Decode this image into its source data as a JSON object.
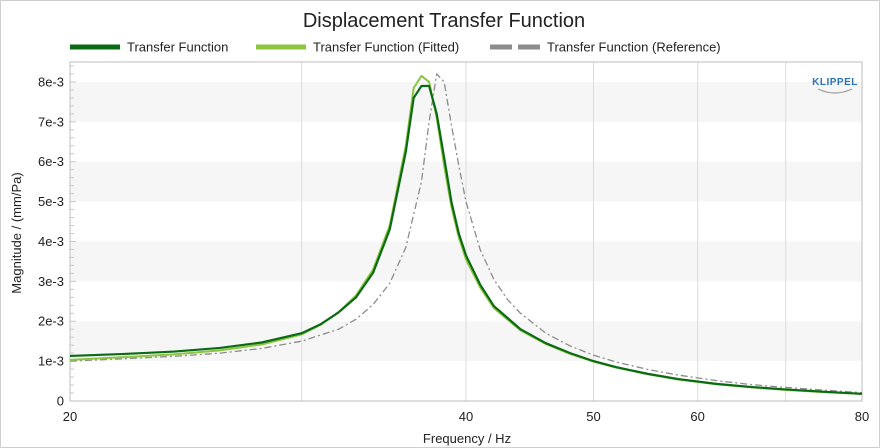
{
  "logo": {
    "text": "KLIPPEL"
  },
  "chart_data": {
    "type": "line",
    "title": "Displacement Transfer Function",
    "xlabel": "Frequency / Hz",
    "ylabel": "Magnitude / (mm/Pa)",
    "xscale": "log",
    "xlim": [
      20,
      80
    ],
    "ylim": [
      0,
      0.0085
    ],
    "x_ticks": [
      20,
      40,
      50,
      60,
      80
    ],
    "x_tick_labels": [
      "20",
      "40",
      "50",
      "60",
      "80"
    ],
    "y_ticks": [
      0,
      0.001,
      0.002,
      0.003,
      0.004,
      0.005,
      0.006,
      0.007,
      0.008
    ],
    "y_tick_labels": [
      "0",
      "1e-3",
      "2e-3",
      "3e-3",
      "4e-3",
      "5e-3",
      "6e-3",
      "7e-3",
      "8e-3"
    ],
    "grid": true,
    "legend_position": "top",
    "series": [
      {
        "name": "Transfer Function",
        "color": "#0a6b14",
        "style": "solid",
        "x": [
          20,
          22,
          24,
          26,
          28,
          30,
          31,
          32,
          33,
          34,
          35,
          36,
          36.5,
          37,
          37.5,
          38,
          38.5,
          39,
          39.5,
          40,
          41,
          42,
          44,
          46,
          48,
          50,
          52,
          55,
          58,
          62,
          66,
          70,
          75,
          80
        ],
        "y": [
          0.00113,
          0.00118,
          0.00124,
          0.00133,
          0.00147,
          0.0017,
          0.00192,
          0.00222,
          0.0026,
          0.00322,
          0.0043,
          0.00625,
          0.0076,
          0.0079,
          0.0079,
          0.0072,
          0.0061,
          0.00498,
          0.0042,
          0.00365,
          0.00292,
          0.00238,
          0.0018,
          0.00145,
          0.0012,
          0.001,
          0.00085,
          0.00068,
          0.00055,
          0.00043,
          0.00035,
          0.00029,
          0.00023,
          0.00018
        ]
      },
      {
        "name": "Transfer Function (Fitted)",
        "color": "#8cc63f",
        "style": "solid",
        "x": [
          20,
          22,
          24,
          26,
          28,
          30,
          31,
          32,
          33,
          34,
          35,
          36,
          36.5,
          37,
          37.5,
          38,
          38.5,
          39,
          39.5,
          40,
          41,
          42,
          44,
          46,
          48,
          50,
          52,
          55,
          58,
          62,
          66,
          70,
          75,
          80
        ],
        "y": [
          0.00103,
          0.0011,
          0.00117,
          0.00127,
          0.00142,
          0.00167,
          0.00191,
          0.00223,
          0.00265,
          0.0033,
          0.0044,
          0.0064,
          0.00785,
          0.00815,
          0.008,
          0.0071,
          0.0059,
          0.00485,
          0.0041,
          0.00355,
          0.00285,
          0.00233,
          0.00177,
          0.00143,
          0.00118,
          0.00099,
          0.00084,
          0.00067,
          0.00054,
          0.00042,
          0.00034,
          0.00028,
          0.00022,
          0.00018
        ]
      },
      {
        "name": "Transfer Function (Reference)",
        "color": "#8c8c8c",
        "style": "dashed",
        "x": [
          20,
          22,
          24,
          26,
          28,
          30,
          32,
          33,
          34,
          35,
          36,
          37,
          37.5,
          38,
          38.5,
          39,
          39.5,
          40,
          41,
          42,
          43,
          44,
          46,
          48,
          50,
          52,
          55,
          58,
          62,
          66,
          70,
          75,
          80
        ],
        "y": [
          0.001,
          0.00106,
          0.00112,
          0.0012,
          0.00132,
          0.0015,
          0.0018,
          0.00205,
          0.00242,
          0.00295,
          0.00385,
          0.0055,
          0.007,
          0.0082,
          0.008,
          0.0069,
          0.0059,
          0.005,
          0.0038,
          0.00305,
          0.00255,
          0.0022,
          0.0017,
          0.00138,
          0.00115,
          0.00098,
          0.00079,
          0.00065,
          0.00051,
          0.00041,
          0.00034,
          0.00027,
          0.00021
        ]
      }
    ]
  }
}
